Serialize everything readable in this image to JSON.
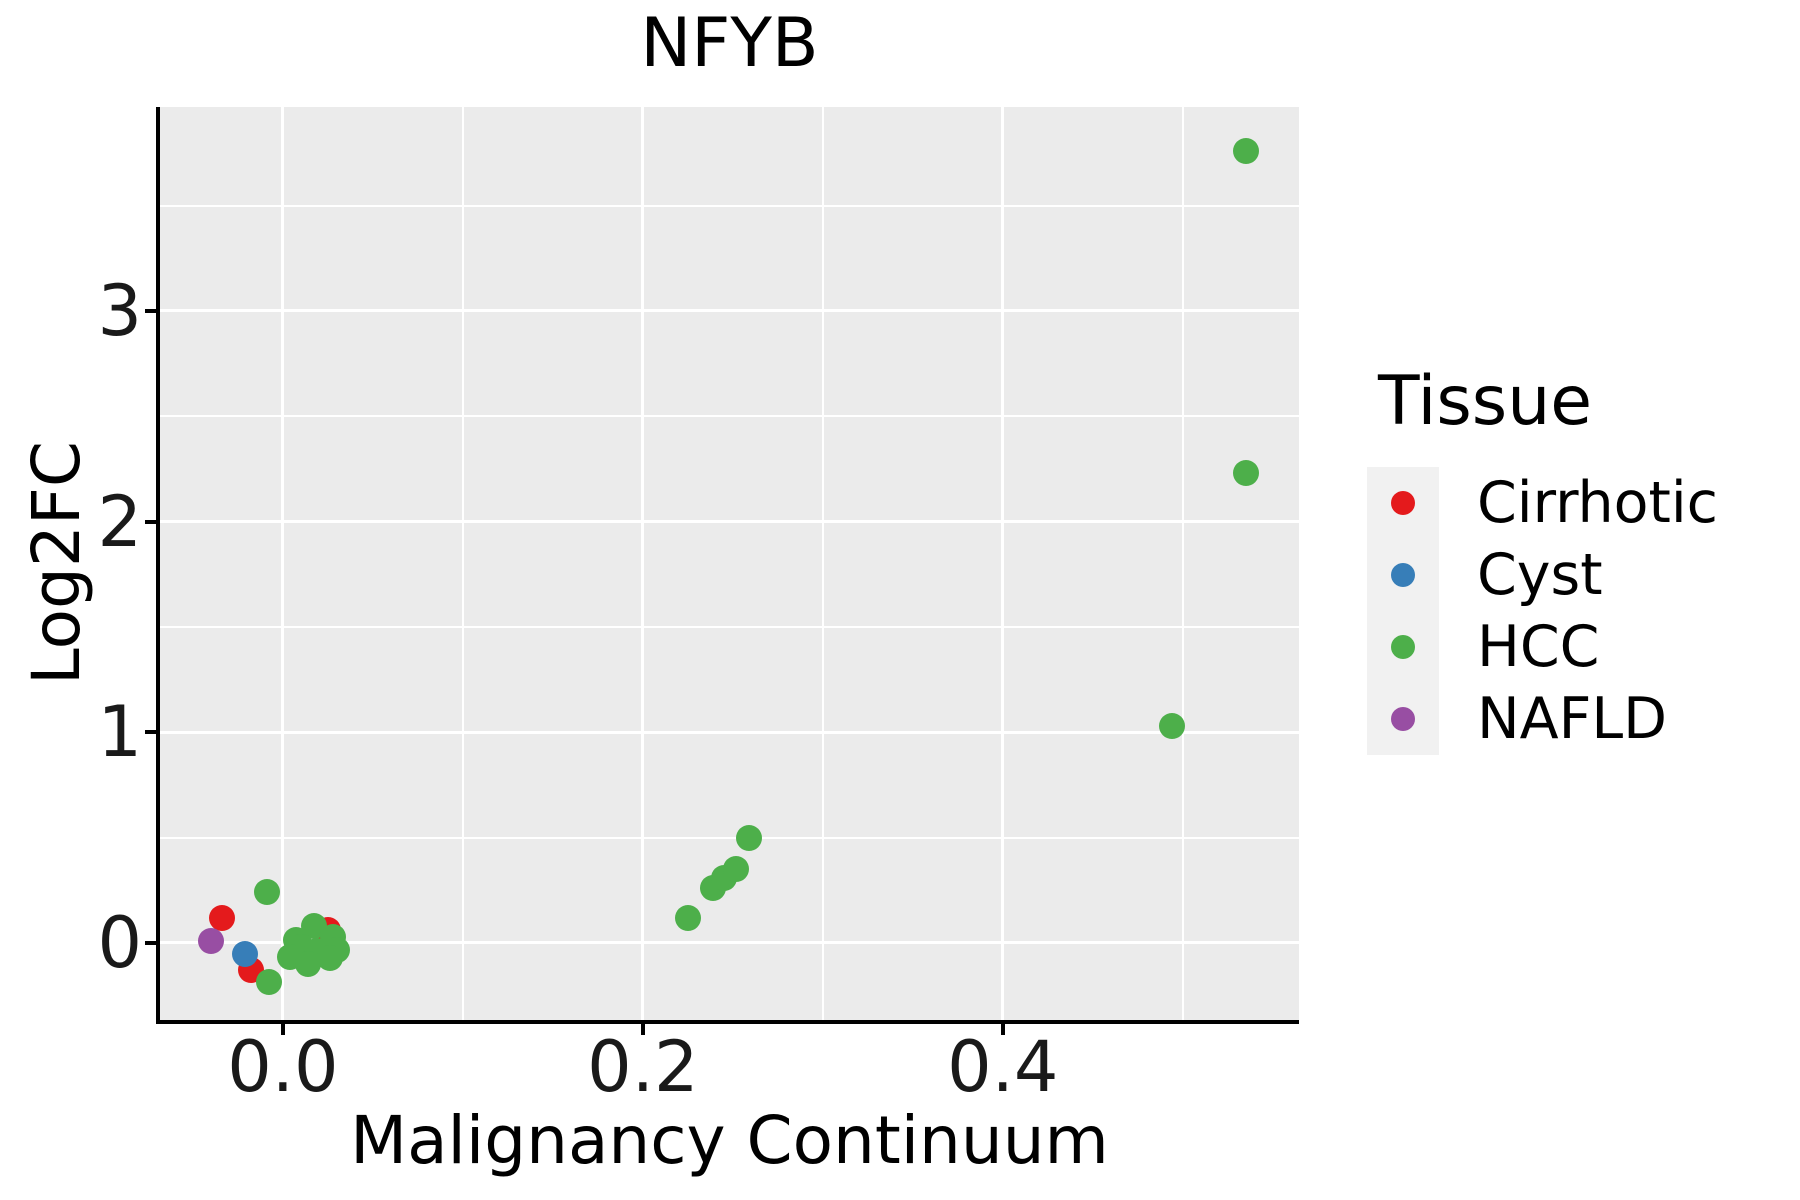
{
  "title": "NFYB",
  "axis_titles": {
    "x": "Malignancy Continuum",
    "y": "Log2FC"
  },
  "legend": {
    "title": "Tissue",
    "entries": [
      {
        "label": "Cirrhotic",
        "color": "#E41A1C"
      },
      {
        "label": "Cyst",
        "color": "#377EB8"
      },
      {
        "label": "HCC",
        "color": "#4DAF4A"
      },
      {
        "label": "NAFLD",
        "color": "#984EA3"
      }
    ]
  },
  "colors": {
    "panel_bg": "#EBEBEB",
    "gridline": "#FFFFFF",
    "spine": "#000000",
    "legend_key_bg": "#F1F1F1"
  },
  "chart_data": {
    "type": "scatter",
    "title": "NFYB",
    "xlabel": "Malignancy Continuum",
    "ylabel": "Log2FC",
    "grid": "major+minor",
    "legend_position": "right",
    "axes": {
      "x": {
        "range": [
          -0.0683,
          0.5646
        ],
        "major_ticks": [
          0.0,
          0.2,
          0.4
        ],
        "tick_labels": [
          "0.0",
          "0.2",
          "0.4"
        ],
        "minor_gridlines": [
          0.1,
          0.3,
          0.5
        ]
      },
      "y": {
        "range": [
          -0.366,
          3.968
        ],
        "major_ticks": [
          0,
          1,
          2,
          3
        ],
        "tick_labels": [
          "0",
          "1",
          "2",
          "3"
        ],
        "minor_gridlines": [
          0.5,
          1.5,
          2.5,
          3.5
        ]
      }
    },
    "series": [
      {
        "name": "Cirrhotic",
        "color": "#E41A1C",
        "points": [
          [
            -0.034,
            0.12
          ],
          [
            -0.018,
            -0.13
          ],
          [
            0.025,
            0.06
          ]
        ]
      },
      {
        "name": "Cyst",
        "color": "#377EB8",
        "points": [
          [
            -0.021,
            -0.055
          ]
        ]
      },
      {
        "name": "HCC",
        "color": "#4DAF4A",
        "points": [
          [
            -0.009,
            0.24
          ],
          [
            0.017,
            0.08
          ],
          [
            0.007,
            0.015
          ],
          [
            0.028,
            0.03
          ],
          [
            0.03,
            -0.035
          ],
          [
            0.01,
            -0.02
          ],
          [
            0.019,
            -0.04
          ],
          [
            0.004,
            -0.065
          ],
          [
            0.026,
            -0.07
          ],
          [
            0.014,
            -0.1
          ],
          [
            -0.008,
            -0.185
          ],
          [
            0.225,
            0.12
          ],
          [
            0.239,
            0.26
          ],
          [
            0.245,
            0.31
          ],
          [
            0.252,
            0.35
          ],
          [
            0.259,
            0.5
          ],
          [
            0.494,
            1.03
          ],
          [
            0.535,
            2.23
          ],
          [
            0.535,
            3.76
          ]
        ]
      },
      {
        "name": "NAFLD",
        "color": "#984EA3",
        "points": [
          [
            -0.04,
            0.01
          ]
        ]
      }
    ]
  }
}
